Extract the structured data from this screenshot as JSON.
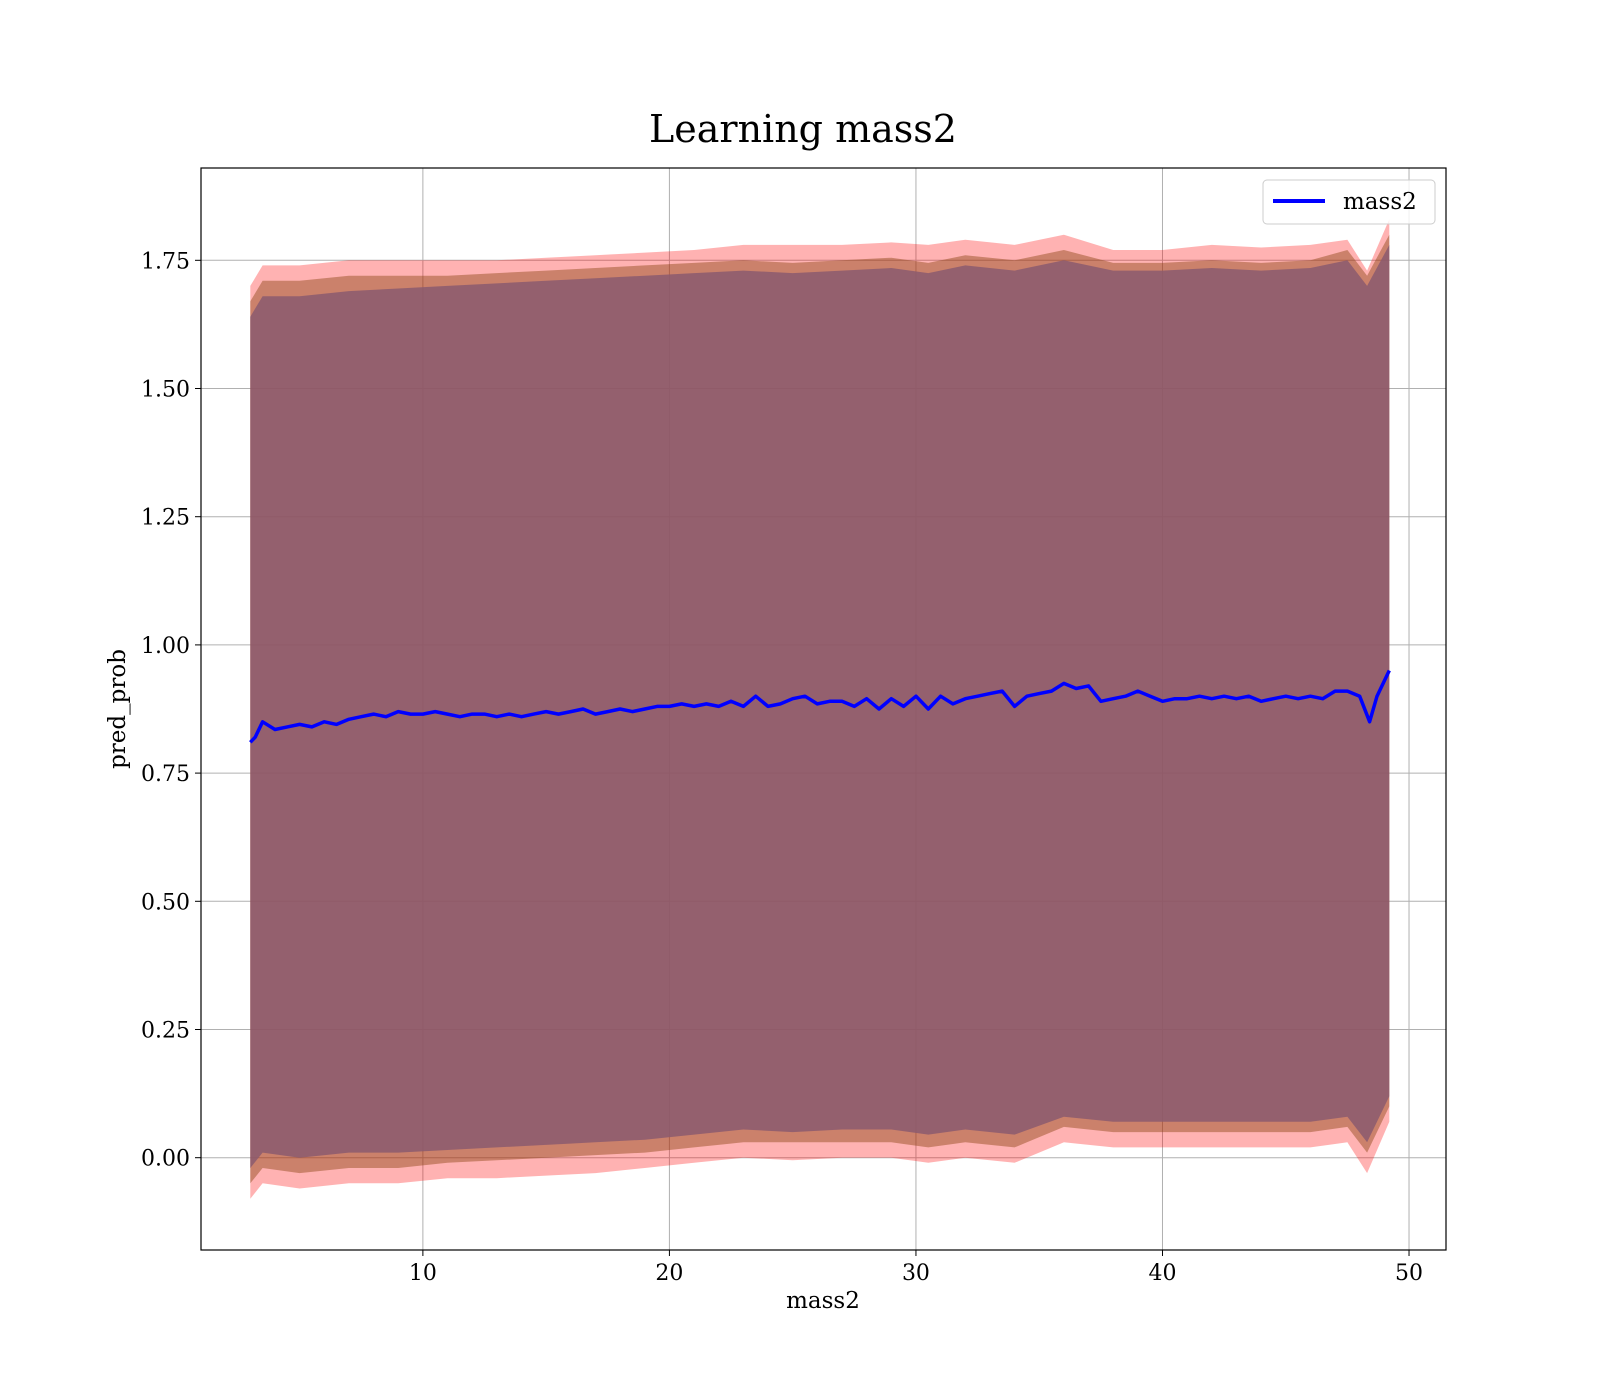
{
  "chart_data": {
    "type": "line",
    "title": "Learning mass2",
    "xlabel": "mass2",
    "ylabel": "pred_prob",
    "xlim": [
      1,
      51.5
    ],
    "ylim": [
      -0.18,
      1.93
    ],
    "xticks": [
      10,
      20,
      30,
      40,
      50
    ],
    "yticks": [
      0.0,
      0.25,
      0.5,
      0.75,
      1.0,
      1.25,
      1.5,
      1.75
    ],
    "ytick_labels": [
      "0.00",
      "0.25",
      "0.50",
      "0.75",
      "1.00",
      "1.25",
      "1.50",
      "1.75"
    ],
    "xtick_labels": [
      "10",
      "20",
      "30",
      "40",
      "50"
    ],
    "grid": true,
    "legend_position": "top-right",
    "series": [
      {
        "name": "mass2",
        "color": "#0000ff",
        "x": [
          3.0,
          3.2,
          3.5,
          4.0,
          4.5,
          5.0,
          5.5,
          6.0,
          6.5,
          7.0,
          7.5,
          8.0,
          8.5,
          9.0,
          9.5,
          10.0,
          10.5,
          11.0,
          11.5,
          12.0,
          12.5,
          13.0,
          13.5,
          14.0,
          14.5,
          15.0,
          15.5,
          16.0,
          16.5,
          17.0,
          17.5,
          18.0,
          18.5,
          19.0,
          19.5,
          20.0,
          20.5,
          21.0,
          21.5,
          22.0,
          22.5,
          23.0,
          23.5,
          24.0,
          24.5,
          25.0,
          25.5,
          26.0,
          26.5,
          27.0,
          27.5,
          28.0,
          28.5,
          29.0,
          29.5,
          30.0,
          30.5,
          31.0,
          31.5,
          32.0,
          32.5,
          33.0,
          33.5,
          34.0,
          34.5,
          35.0,
          35.5,
          36.0,
          36.5,
          37.0,
          37.5,
          38.0,
          38.5,
          39.0,
          39.5,
          40.0,
          40.5,
          41.0,
          41.5,
          42.0,
          42.5,
          43.0,
          43.5,
          44.0,
          44.5,
          45.0,
          45.5,
          46.0,
          46.5,
          47.0,
          47.5,
          48.0,
          48.4,
          48.7,
          49.2
        ],
        "values": [
          0.81,
          0.82,
          0.85,
          0.835,
          0.84,
          0.845,
          0.84,
          0.85,
          0.845,
          0.855,
          0.86,
          0.865,
          0.86,
          0.87,
          0.865,
          0.865,
          0.87,
          0.865,
          0.86,
          0.865,
          0.865,
          0.86,
          0.865,
          0.86,
          0.865,
          0.87,
          0.865,
          0.87,
          0.875,
          0.865,
          0.87,
          0.875,
          0.87,
          0.875,
          0.88,
          0.88,
          0.885,
          0.88,
          0.885,
          0.88,
          0.89,
          0.88,
          0.9,
          0.88,
          0.885,
          0.895,
          0.9,
          0.885,
          0.89,
          0.89,
          0.88,
          0.895,
          0.875,
          0.895,
          0.88,
          0.9,
          0.875,
          0.9,
          0.885,
          0.895,
          0.9,
          0.905,
          0.91,
          0.88,
          0.9,
          0.905,
          0.91,
          0.925,
          0.915,
          0.92,
          0.89,
          0.895,
          0.9,
          0.91,
          0.9,
          0.89,
          0.895,
          0.895,
          0.9,
          0.895,
          0.9,
          0.895,
          0.9,
          0.89,
          0.895,
          0.9,
          0.895,
          0.9,
          0.895,
          0.91,
          0.91,
          0.9,
          0.85,
          0.9,
          0.95
        ]
      }
    ],
    "bands": [
      {
        "color": "#ff0000",
        "opacity": 0.3,
        "x": [
          3.0,
          3.5,
          5.0,
          7.0,
          9.0,
          11.0,
          13.0,
          15.0,
          17.0,
          19.0,
          21.0,
          23.0,
          25.0,
          27.0,
          29.0,
          30.5,
          32.0,
          34.0,
          36.0,
          38.0,
          40.0,
          42.0,
          44.0,
          46.0,
          47.5,
          48.3,
          49.2
        ],
        "upper": [
          1.7,
          1.74,
          1.74,
          1.75,
          1.75,
          1.75,
          1.75,
          1.755,
          1.76,
          1.765,
          1.77,
          1.78,
          1.78,
          1.78,
          1.785,
          1.78,
          1.79,
          1.78,
          1.8,
          1.77,
          1.77,
          1.78,
          1.775,
          1.78,
          1.79,
          1.73,
          1.83
        ],
        "lower": [
          -0.08,
          -0.05,
          -0.06,
          -0.05,
          -0.05,
          -0.04,
          -0.04,
          -0.035,
          -0.03,
          -0.02,
          -0.01,
          0.0,
          -0.005,
          0.0,
          0.0,
          -0.01,
          0.0,
          -0.01,
          0.03,
          0.02,
          0.02,
          0.02,
          0.02,
          0.02,
          0.03,
          -0.03,
          0.07
        ]
      },
      {
        "color": "#8b4513",
        "opacity": 0.45,
        "x": [
          3.0,
          3.5,
          5.0,
          7.0,
          9.0,
          11.0,
          13.0,
          15.0,
          17.0,
          19.0,
          21.0,
          23.0,
          25.0,
          27.0,
          29.0,
          30.5,
          32.0,
          34.0,
          36.0,
          38.0,
          40.0,
          42.0,
          44.0,
          46.0,
          47.5,
          48.3,
          49.2
        ],
        "upper": [
          1.67,
          1.71,
          1.71,
          1.72,
          1.72,
          1.72,
          1.725,
          1.73,
          1.735,
          1.74,
          1.745,
          1.75,
          1.745,
          1.75,
          1.755,
          1.745,
          1.76,
          1.75,
          1.77,
          1.745,
          1.745,
          1.75,
          1.745,
          1.75,
          1.77,
          1.72,
          1.8
        ],
        "lower": [
          -0.05,
          -0.02,
          -0.03,
          -0.02,
          -0.02,
          -0.01,
          -0.005,
          0.0,
          0.005,
          0.01,
          0.02,
          0.03,
          0.03,
          0.03,
          0.03,
          0.02,
          0.03,
          0.02,
          0.06,
          0.05,
          0.05,
          0.05,
          0.05,
          0.05,
          0.06,
          0.01,
          0.1
        ]
      },
      {
        "color": "#8b5a6e",
        "opacity": 0.85,
        "x": [
          3.0,
          3.5,
          5.0,
          7.0,
          9.0,
          11.0,
          13.0,
          15.0,
          17.0,
          19.0,
          21.0,
          23.0,
          25.0,
          27.0,
          29.0,
          30.5,
          32.0,
          34.0,
          36.0,
          38.0,
          40.0,
          42.0,
          44.0,
          46.0,
          47.5,
          48.3,
          49.2
        ],
        "upper": [
          1.64,
          1.68,
          1.68,
          1.69,
          1.695,
          1.7,
          1.705,
          1.71,
          1.715,
          1.72,
          1.725,
          1.73,
          1.725,
          1.73,
          1.735,
          1.725,
          1.74,
          1.73,
          1.75,
          1.73,
          1.73,
          1.735,
          1.73,
          1.735,
          1.75,
          1.7,
          1.78
        ],
        "lower": [
          -0.02,
          0.01,
          0.0,
          0.01,
          0.01,
          0.015,
          0.02,
          0.025,
          0.03,
          0.035,
          0.045,
          0.055,
          0.05,
          0.055,
          0.055,
          0.045,
          0.055,
          0.045,
          0.08,
          0.07,
          0.07,
          0.07,
          0.07,
          0.07,
          0.08,
          0.03,
          0.12
        ]
      }
    ]
  }
}
